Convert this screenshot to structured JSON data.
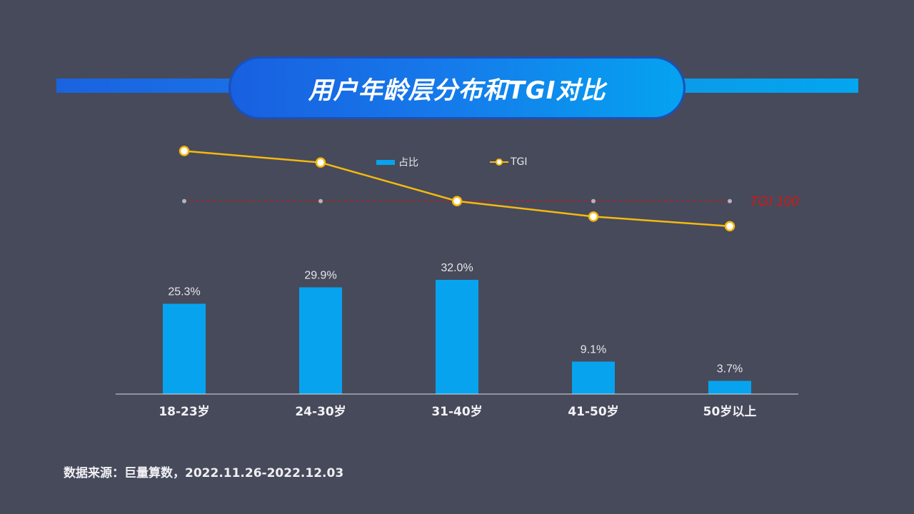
{
  "title": "用户年龄层分布和TGI对比",
  "legend": {
    "bar_label": "占比",
    "line_label": "TGI"
  },
  "source": "数据来源：巨量算数，2022.11.26-2022.12.03",
  "colors": {
    "background": "#474a5a",
    "bar": "#08a3ee",
    "line": "#f5b90f",
    "reference": "#d01818",
    "title_gradient_start": "#1860e0",
    "title_gradient_end": "#05a3f0"
  },
  "chart_data": {
    "type": "bar",
    "categories": [
      "18-23岁",
      "24-30岁",
      "31-40岁",
      "41-50岁",
      "50岁以上"
    ],
    "series": [
      {
        "name": "占比",
        "type": "bar",
        "values": [
          25.3,
          29.9,
          32.0,
          9.1,
          3.7
        ],
        "labels": [
          "25.3%",
          "29.9%",
          "32.0%",
          "9.1%",
          "3.7%"
        ]
      },
      {
        "name": "TGI",
        "type": "line",
        "values": [
          126,
          120,
          100,
          92,
          87
        ]
      }
    ],
    "reference_line": {
      "label": "TGI 100",
      "value": 100
    },
    "bar_ylim": [
      0,
      36
    ],
    "tgi_ylim": [
      0,
      148
    ],
    "grid": false,
    "legend_position": "top-center"
  }
}
